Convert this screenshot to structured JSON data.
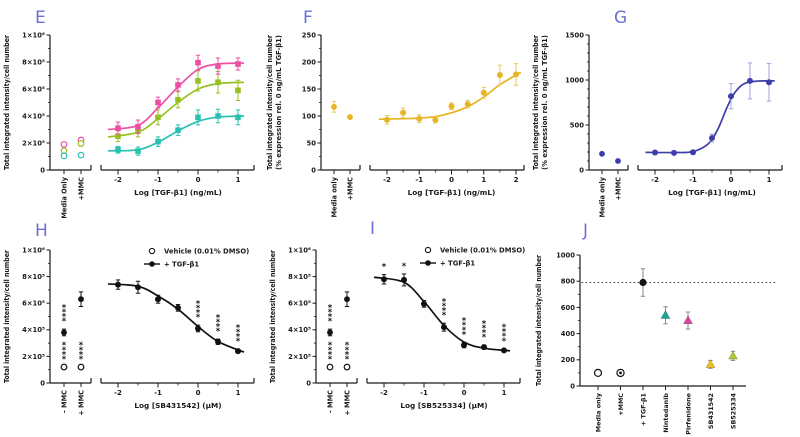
{
  "figure_title": "",
  "letter_color": "#6e6ed8",
  "chart_data": [
    {
      "id": "E",
      "letter": "E",
      "type": "break",
      "ylabel": [
        "Total integrated intensity/cell number"
      ],
      "ylim": [
        0,
        1000000
      ],
      "yticks": [
        {
          "v": 0,
          "t": "0"
        },
        {
          "v": 200000,
          "t": "2×10⁵"
        },
        {
          "v": 400000,
          "t": "4×10⁵"
        },
        {
          "v": 600000,
          "t": "6×10⁵"
        },
        {
          "v": 800000,
          "t": "8×10⁵"
        },
        {
          "v": 1000000,
          "t": "1×10⁶"
        }
      ],
      "y_minor_step": 100000,
      "left": {
        "categories": [
          "Media Only",
          "+MMC"
        ],
        "points": [
          {
            "cat": 0,
            "y": 190000,
            "err": 12000,
            "marker": "open-circle",
            "color": "#ec4fa4"
          },
          {
            "cat": 0,
            "y": 142000,
            "err": 9000,
            "marker": "open-circle",
            "color": "#97c11f"
          },
          {
            "cat": 0,
            "y": 105000,
            "err": 7000,
            "marker": "open-circle",
            "color": "#29c0b2"
          },
          {
            "cat": 1,
            "y": 222000,
            "err": 16000,
            "marker": "open-circle",
            "color": "#ec4fa4"
          },
          {
            "cat": 1,
            "y": 196000,
            "err": 12000,
            "marker": "open-circle",
            "color": "#97c11f"
          },
          {
            "cat": 1,
            "y": 110000,
            "err": 7000,
            "marker": "open-circle",
            "color": "#29c0b2"
          }
        ]
      },
      "xlabel": "Log [TGF-β1] (ng/mL)",
      "xticks": [
        -2,
        -1,
        0,
        1
      ],
      "series": [
        {
          "name": "series-teal",
          "color": "#29c0b2",
          "marker": "square",
          "x": [
            -2,
            -1.5,
            -1,
            -0.5,
            0,
            0.5,
            1
          ],
          "y": [
            150000,
            140000,
            210000,
            295000,
            390000,
            400000,
            390000
          ],
          "err": [
            25000,
            30000,
            35000,
            40000,
            55000,
            50000,
            55000
          ],
          "fit": [
            [
              -2.25,
              142000
            ],
            [
              -1.5,
              150000
            ],
            [
              -1,
              205000
            ],
            [
              -0.5,
              290000
            ],
            [
              0,
              360000
            ],
            [
              0.5,
              392000
            ],
            [
              1.15,
              400000
            ]
          ]
        },
        {
          "name": "series-green",
          "color": "#97c11f",
          "marker": "square",
          "x": [
            -2,
            -1.5,
            -1,
            -0.5,
            0,
            0.5,
            1
          ],
          "y": [
            250000,
            290000,
            390000,
            520000,
            660000,
            650000,
            590000
          ],
          "err": [
            40000,
            45000,
            55000,
            60000,
            75000,
            80000,
            75000
          ],
          "fit": [
            [
              -2.25,
              245000
            ],
            [
              -1.5,
              280000
            ],
            [
              -1,
              380000
            ],
            [
              -0.5,
              500000
            ],
            [
              0,
              600000
            ],
            [
              0.5,
              640000
            ],
            [
              1.15,
              650000
            ]
          ]
        },
        {
          "name": "series-pink",
          "color": "#ec4fa4",
          "marker": "square",
          "x": [
            -2,
            -1.5,
            -1,
            -0.5,
            0,
            0.5,
            1
          ],
          "y": [
            310000,
            320000,
            500000,
            630000,
            795000,
            770000,
            785000
          ],
          "err": [
            45000,
            50000,
            40000,
            45000,
            55000,
            60000,
            45000
          ],
          "fit": [
            [
              -2.25,
              300000
            ],
            [
              -1.5,
              330000
            ],
            [
              -1,
              460000
            ],
            [
              -0.5,
              615000
            ],
            [
              0,
              745000
            ],
            [
              0.5,
              785000
            ],
            [
              1.15,
              792000
            ]
          ]
        }
      ]
    },
    {
      "id": "F",
      "letter": "F",
      "type": "break",
      "ylabel": [
        "Total integrated intensity/cell number",
        "(% expression rel. 0 ng/mL TGF-β1)"
      ],
      "ylim": [
        0,
        250
      ],
      "yticks": [
        {
          "v": 0,
          "t": "0"
        },
        {
          "v": 50,
          "t": "50"
        },
        {
          "v": 100,
          "t": "100"
        },
        {
          "v": 150,
          "t": "150"
        },
        {
          "v": 200,
          "t": "200"
        },
        {
          "v": 250,
          "t": "250"
        }
      ],
      "y_minor_step": 25,
      "left": {
        "categories": [
          "Media only",
          "+MMC"
        ],
        "points": [
          {
            "cat": 0,
            "y": 117,
            "err": 10,
            "marker": "circle",
            "color": "#e9b41f",
            "err_color": "#edc75e"
          },
          {
            "cat": 1,
            "y": 98,
            "err": 3,
            "marker": "circle",
            "color": "#e9b41f",
            "err_color": "#edc75e"
          }
        ]
      },
      "xlabel": "Log [TGF-β1] (ng/mL)",
      "xticks": [
        -2,
        -1,
        0,
        1,
        2
      ],
      "series": [
        {
          "name": "series-gold",
          "color": "#e9b41f",
          "err_color": "#edc75e",
          "marker": "circle",
          "x": [
            -2,
            -1.5,
            -1,
            -0.5,
            0,
            0.5,
            1,
            1.5,
            2
          ],
          "y": [
            93,
            106,
            95,
            93,
            118,
            122,
            143,
            176,
            177
          ],
          "err": [
            8,
            9,
            7,
            6,
            6,
            7,
            10,
            18,
            20
          ],
          "fit": [
            [
              -2.25,
              94
            ],
            [
              -1.5,
              95
            ],
            [
              -1,
              96
            ],
            [
              -0.5,
              99
            ],
            [
              0,
              106
            ],
            [
              0.5,
              117
            ],
            [
              1,
              135
            ],
            [
              1.5,
              158
            ],
            [
              2.15,
              181
            ]
          ]
        }
      ]
    },
    {
      "id": "G",
      "letter": "G",
      "type": "break",
      "ylabel": [
        "Total integrated intensity/cell number",
        "(% expression rel. 0 ng/mL TGF-β1)"
      ],
      "ylim": [
        0,
        1500
      ],
      "yticks": [
        {
          "v": 0,
          "t": "0"
        },
        {
          "v": 500,
          "t": "500"
        },
        {
          "v": 1000,
          "t": "1000"
        },
        {
          "v": 1500,
          "t": "1500"
        }
      ],
      "y_minor_step": 100,
      "left": {
        "categories": [
          "Media only",
          "+MMC"
        ],
        "points": [
          {
            "cat": 0,
            "y": 180,
            "err": 0,
            "marker": "circle",
            "color": "#3d3dab"
          },
          {
            "cat": 1,
            "y": 100,
            "err": 0,
            "marker": "circle",
            "color": "#3d3dab"
          }
        ]
      },
      "xlabel": "Log [TGF-β1] (ng/mL)",
      "xticks": [
        -2,
        -1,
        0,
        1
      ],
      "series": [
        {
          "name": "series-blue",
          "color": "#3d3dab",
          "err_color": "#a3a3dc",
          "marker": "circle",
          "x": [
            -2,
            -1.5,
            -1,
            -0.5,
            0,
            0.5,
            1
          ],
          "y": [
            195,
            190,
            197,
            355,
            820,
            990,
            975
          ],
          "err": [
            20,
            15,
            20,
            45,
            140,
            200,
            210
          ],
          "fit": [
            [
              -2.25,
              196
            ],
            [
              -1.5,
              194
            ],
            [
              -1,
              205
            ],
            [
              -0.6,
              290
            ],
            [
              -0.35,
              450
            ],
            [
              -0.1,
              700
            ],
            [
              0.1,
              860
            ],
            [
              0.35,
              960
            ],
            [
              0.7,
              988
            ],
            [
              1.15,
              990
            ]
          ]
        }
      ]
    },
    {
      "id": "H",
      "letter": "H",
      "type": "break",
      "ylabel": [
        "Total integrated intensity/cell number"
      ],
      "ylim": [
        0,
        1000000
      ],
      "yticks": [
        {
          "v": 0,
          "t": "0"
        },
        {
          "v": 200000,
          "t": "2×10⁵"
        },
        {
          "v": 400000,
          "t": "4×10⁵"
        },
        {
          "v": 600000,
          "t": "6×10⁵"
        },
        {
          "v": 800000,
          "t": "8×10⁵"
        },
        {
          "v": 1000000,
          "t": "1×10⁶"
        }
      ],
      "y_minor_step": 100000,
      "left": {
        "categories": [
          "- MMC",
          "+ MMC"
        ],
        "points": [
          {
            "cat": 0,
            "y": 380000,
            "err": 25000,
            "marker": "circle",
            "color": "#111111",
            "stars": "****"
          },
          {
            "cat": 0,
            "y": 120000,
            "err": 0,
            "marker": "open-circle",
            "color": "#111111",
            "stars": "****"
          },
          {
            "cat": 1,
            "y": 630000,
            "err": 55000,
            "marker": "circle",
            "color": "#111111"
          },
          {
            "cat": 1,
            "y": 120000,
            "err": 0,
            "marker": "open-circle",
            "color": "#111111",
            "stars": "****"
          }
        ]
      },
      "legend": {
        "items": [
          {
            "marker": "open-circle",
            "label": "Vehicle (0.01% DMSO)"
          },
          {
            "marker": "line-circle",
            "label": "+ TGF-β1"
          }
        ]
      },
      "xlabel": "Log [SB431542] (μM)",
      "xticks": [
        -2,
        -1,
        0,
        1
      ],
      "series": [
        {
          "name": "series-black",
          "color": "#111111",
          "marker": "circle",
          "x": [
            -2,
            -1.5,
            -1,
            -0.5,
            0,
            0.5,
            1
          ],
          "y": [
            740000,
            720000,
            630000,
            565000,
            410000,
            310000,
            240000
          ],
          "err": [
            35000,
            45000,
            30000,
            25000,
            25000,
            20000,
            15000
          ],
          "stars": [
            "",
            "",
            "",
            "",
            "****",
            "****",
            "****"
          ],
          "fit": [
            [
              -2.25,
              745000
            ],
            [
              -1.5,
              727000
            ],
            [
              -1,
              655000
            ],
            [
              -0.5,
              555000
            ],
            [
              0,
              425000
            ],
            [
              0.5,
              312000
            ],
            [
              1.15,
              232000
            ]
          ]
        }
      ]
    },
    {
      "id": "I",
      "letter": "I",
      "type": "break",
      "ylabel": [
        "Total integrated intensity/cell number"
      ],
      "ylim": [
        0,
        1000000
      ],
      "yticks": [
        {
          "v": 0,
          "t": "0"
        },
        {
          "v": 200000,
          "t": "2×10⁵"
        },
        {
          "v": 400000,
          "t": "4×10⁵"
        },
        {
          "v": 600000,
          "t": "6×10⁵"
        },
        {
          "v": 800000,
          "t": "8×10⁵"
        },
        {
          "v": 1000000,
          "t": "1×10⁶"
        }
      ],
      "y_minor_step": 100000,
      "left": {
        "categories": [
          "- MMC",
          "+ MMC"
        ],
        "points": [
          {
            "cat": 0,
            "y": 380000,
            "err": 25000,
            "marker": "circle",
            "color": "#111111",
            "stars": "****"
          },
          {
            "cat": 0,
            "y": 120000,
            "err": 0,
            "marker": "open-circle",
            "color": "#111111",
            "stars": "****"
          },
          {
            "cat": 1,
            "y": 630000,
            "err": 55000,
            "marker": "circle",
            "color": "#111111"
          },
          {
            "cat": 1,
            "y": 120000,
            "err": 0,
            "marker": "open-circle",
            "color": "#111111",
            "stars": "****"
          }
        ]
      },
      "legend": {
        "items": [
          {
            "marker": "open-circle",
            "label": "Vehicle (0.01% DMSO)"
          },
          {
            "marker": "line-circle",
            "label": "+ TGF-β1"
          }
        ]
      },
      "xlabel": "Log [SB525334] (μM)",
      "xticks": [
        -2,
        -1,
        0,
        1
      ],
      "series": [
        {
          "name": "series-black",
          "color": "#111111",
          "marker": "circle",
          "x": [
            -2,
            -1.5,
            -1,
            -0.5,
            0,
            0.5,
            1
          ],
          "y": [
            780000,
            775000,
            595000,
            420000,
            285000,
            270000,
            245000
          ],
          "err": [
            35000,
            45000,
            25000,
            30000,
            20000,
            15000,
            12000
          ],
          "stars": [
            "*",
            "*",
            "",
            "****",
            "****",
            "****",
            "****"
          ],
          "fit": [
            [
              -2.25,
              795000
            ],
            [
              -1.5,
              757000
            ],
            [
              -1,
              612000
            ],
            [
              -0.5,
              432000
            ],
            [
              0,
              308000
            ],
            [
              0.5,
              262000
            ],
            [
              1.15,
              242000
            ]
          ]
        }
      ]
    },
    {
      "id": "J",
      "letter": "J",
      "type": "cat",
      "ylabel": [
        "Total integrated intensity/cell number"
      ],
      "ylim": [
        0,
        1000
      ],
      "yticks": [
        {
          "v": 0,
          "t": "0"
        },
        {
          "v": 200,
          "t": "200"
        },
        {
          "v": 400,
          "t": "400"
        },
        {
          "v": 600,
          "t": "600"
        },
        {
          "v": 800,
          "t": "800"
        },
        {
          "v": 1000,
          "t": "1000"
        }
      ],
      "y_minor_step": 100,
      "categories": [
        "Media only",
        "+MMC",
        "+ TGF-β1",
        "Nintedanib",
        "Pirfenidone",
        "SB431542",
        "SB525334"
      ],
      "hline": 790,
      "points": [
        {
          "cat": 0,
          "y": 100,
          "err": 0,
          "marker": "open-circle",
          "color": "#111111"
        },
        {
          "cat": 1,
          "y": 100,
          "err": 0,
          "marker": "bullseye",
          "color": "#111111"
        },
        {
          "cat": 2,
          "y": 790,
          "err": 105,
          "marker": "circle",
          "color": "#111111",
          "err_color": "#8a8a8a"
        },
        {
          "cat": 3,
          "y": 540,
          "err": 65,
          "marker": "triangle",
          "color": "#1ba393",
          "err_color": "#8a8a8a"
        },
        {
          "cat": 4,
          "y": 500,
          "err": 65,
          "marker": "triangle",
          "color": "#d8439c",
          "err_color": "#8a8a8a"
        },
        {
          "cat": 5,
          "y": 165,
          "err": 30,
          "marker": "triangle",
          "color": "#f0c01e",
          "err_color": "#8a8a8a"
        },
        {
          "cat": 6,
          "y": 230,
          "err": 35,
          "marker": "triangle",
          "color": "#accb37",
          "err_color": "#8a8a8a"
        }
      ]
    }
  ]
}
